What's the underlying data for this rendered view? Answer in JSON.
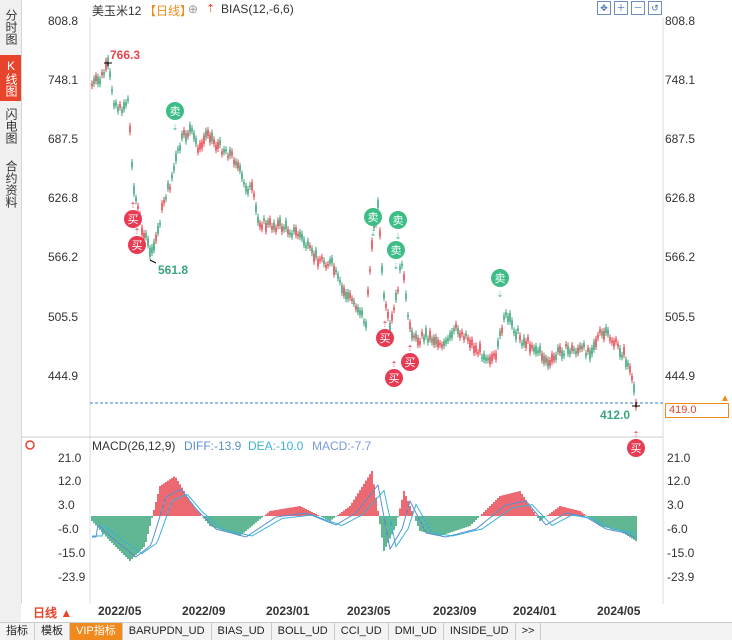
{
  "sidebar": {
    "tabs": [
      {
        "label": "分时图",
        "active": false
      },
      {
        "label": "K线图",
        "active": true
      },
      {
        "label": "闪电图",
        "active": false
      },
      {
        "label": "合约资料",
        "active": false
      }
    ]
  },
  "header": {
    "symbol": "美玉米12",
    "period_tag": "【日线】",
    "add_icon": "⊕",
    "indicator": "BIAS(12,-6,6)"
  },
  "macd": {
    "title": "MACD(26,12,9)",
    "diff": "DIFF:-13.9",
    "dea": "DEA:-10.0",
    "macd": "MACD:-7.7"
  },
  "price_axis": [
    "808.8",
    "748.1",
    "687.5",
    "626.8",
    "566.2",
    "505.5",
    "444.9"
  ],
  "macd_axis": [
    "21.0",
    "12.0",
    "3.0",
    "-6.0",
    "-15.0",
    "-23.9"
  ],
  "markers": {
    "high": "766.3",
    "low": "561.8",
    "last": "412.0",
    "current_price": "419.0"
  },
  "signals": {
    "buy": "买",
    "sell": "卖"
  },
  "dates": [
    "2022/05",
    "2022/09",
    "2023/01",
    "2023/05",
    "2023/09",
    "2024/01",
    "2024/05"
  ],
  "period_button": "日线 ▲",
  "bottom_tabs": [
    "指标",
    "模板",
    "VIP指标",
    "BARUPDN_UD",
    "BIAS_UD",
    "BOLL_UD",
    "CCI_UD",
    "DMI_UD",
    "INSIDE_UD",
    ">>"
  ],
  "colors": {
    "up": "#e8444f",
    "down": "#3aa57a",
    "accent": "#f08a1c",
    "diff": "#5a8fd1",
    "dea": "#39b3d6"
  }
}
